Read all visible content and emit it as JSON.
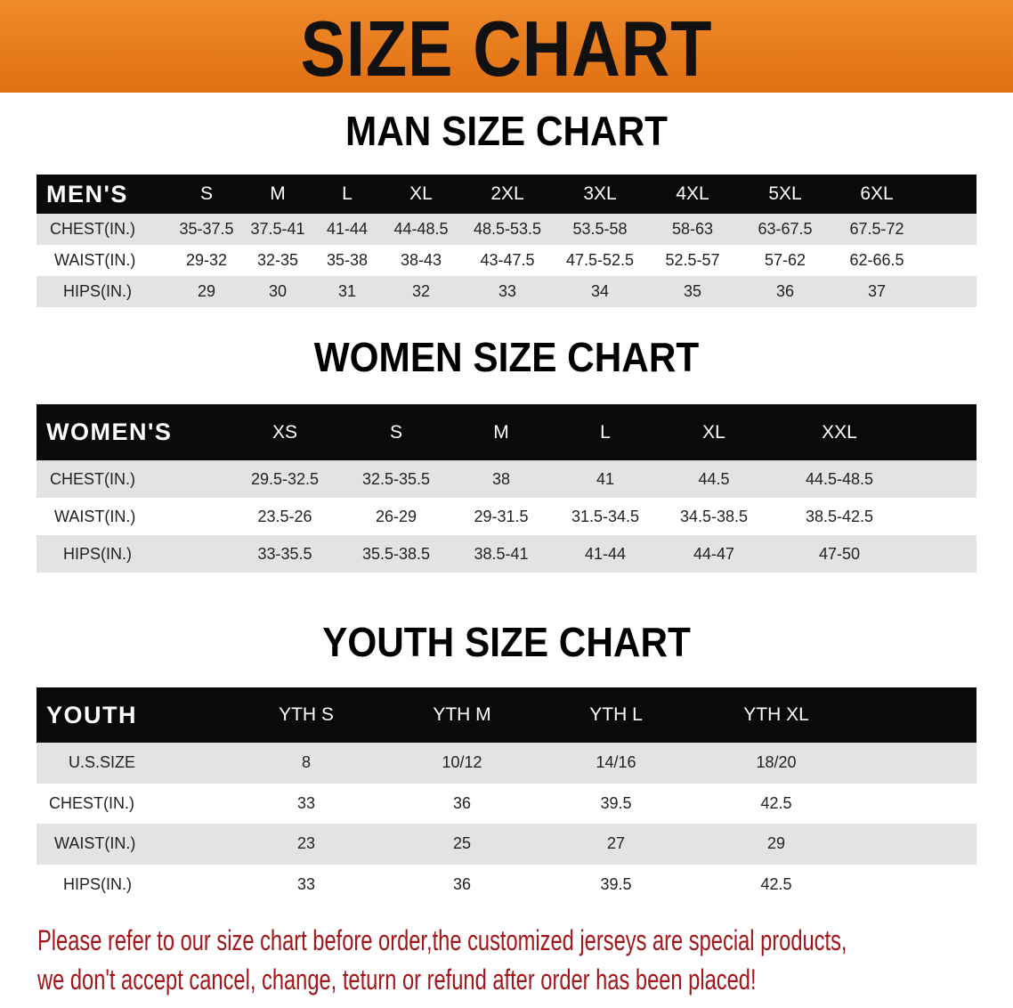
{
  "banner": {
    "title": "SIZE CHART",
    "color": "#e8791b"
  },
  "men": {
    "title": "MAN SIZE CHART",
    "header": [
      "MEN'S",
      "S",
      "M",
      "L",
      "XL",
      "2XL",
      "3XL",
      "4XL",
      "5XL",
      "6XL"
    ],
    "rows": [
      [
        "CHEST(IN.)",
        "35-37.5",
        "37.5-41",
        "41-44",
        "44-48.5",
        "48.5-53.5",
        "53.5-58",
        "58-63",
        "63-67.5",
        "67.5-72"
      ],
      [
        "WAIST(IN.)",
        "29-32",
        "32-35",
        "35-38",
        "38-43",
        "43-47.5",
        "47.5-52.5",
        "52.5-57",
        "57-62",
        "62-66.5"
      ],
      [
        "HIPS(IN.)",
        "29",
        "30",
        "31",
        "32",
        "33",
        "34",
        "35",
        "36",
        "37"
      ]
    ]
  },
  "women": {
    "title": "WOMEN SIZE CHART",
    "header": [
      "WOMEN'S",
      "XS",
      "S",
      "M",
      "L",
      "XL",
      "XXL"
    ],
    "rows": [
      [
        "CHEST(IN.)",
        "29.5-32.5",
        "32.5-35.5",
        "38",
        "41",
        "44.5",
        "44.5-48.5"
      ],
      [
        "WAIST(IN.)",
        "23.5-26",
        "26-29",
        "29-31.5",
        "31.5-34.5",
        "34.5-38.5",
        "38.5-42.5"
      ],
      [
        "HIPS(IN.)",
        "33-35.5",
        "35.5-38.5",
        "38.5-41",
        "41-44",
        "44-47",
        "47-50"
      ]
    ]
  },
  "youth": {
    "title": "YOUTH SIZE CHART",
    "header": [
      "YOUTH",
      "YTH S",
      "YTH M",
      "YTH L",
      "YTH XL"
    ],
    "rows": [
      [
        "U.S.SIZE",
        "8",
        "10/12",
        "14/16",
        "18/20"
      ],
      [
        "CHEST(IN.)",
        "33",
        "36",
        "39.5",
        "42.5"
      ],
      [
        "WAIST(IN.)",
        "23",
        "25",
        "27",
        "29"
      ],
      [
        "HIPS(IN.)",
        "33",
        "36",
        "39.5",
        "42.5"
      ]
    ]
  },
  "note": {
    "line1": "Please refer to our size chart before order,the customized jerseys are special products,",
    "line2": "we don't accept cancel, change, teturn or refund after order has been placed!",
    "color": "#a3161a"
  }
}
